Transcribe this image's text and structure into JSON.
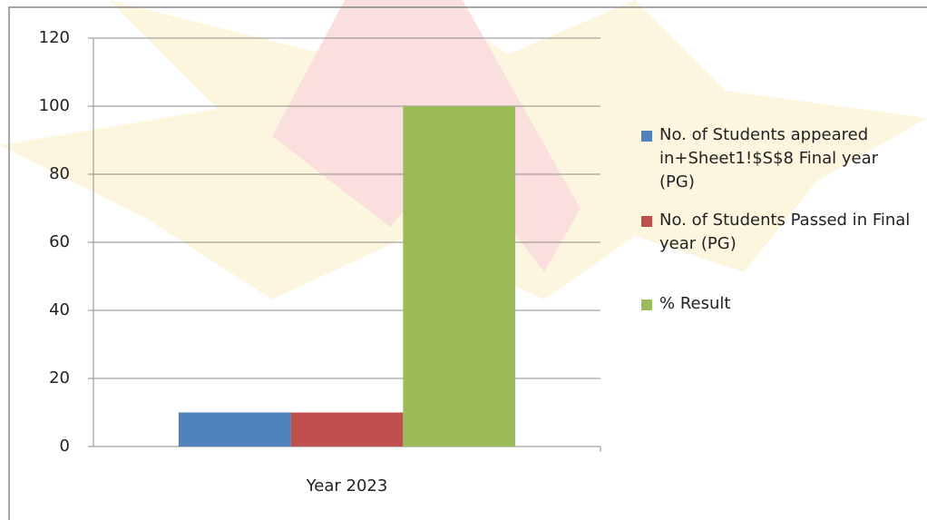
{
  "chart_data": {
    "type": "bar",
    "categories": [
      "Year 2023"
    ],
    "series": [
      {
        "name": "No. of Students appeared in+Sheet1!$S$8 Final year (PG)",
        "color": "#4f81bd",
        "values": [
          10
        ]
      },
      {
        "name": "No. of Students Passed in Final year (PG)",
        "color": "#c0504d",
        "values": [
          10
        ]
      },
      {
        "name": "% Result",
        "color": "#9bbb59",
        "values": [
          100
        ]
      }
    ],
    "ylim": [
      0,
      120
    ],
    "yticks": [
      0,
      20,
      40,
      60,
      80,
      100,
      120
    ],
    "grid": true,
    "legend": "right"
  }
}
